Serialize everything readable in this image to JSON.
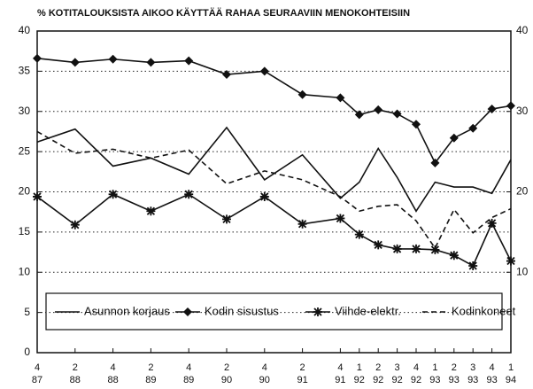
{
  "chart_data": {
    "type": "line",
    "title": "% KOTITALOUKSISTA AIKOO KÄYTTÄÄ RAHAA SEURAAVIIN MENOKOHTEISIIN",
    "categories": [
      "4\n87",
      "2\n88",
      "4\n88",
      "2\n89",
      "4\n89",
      "2\n90",
      "4\n90",
      "2\n91",
      "4\n91",
      "1\n92",
      "2\n92",
      "3\n92",
      "4\n92",
      "1\n93",
      "2\n93",
      "3\n93",
      "4\n93",
      "1\n94"
    ],
    "series": [
      {
        "name": "Asunnon korjaus",
        "color": "#111111",
        "marker": "none",
        "dash": false,
        "values": [
          26.2,
          27.8,
          23.2,
          24.2,
          22.2,
          28,
          21.5,
          24.6,
          19.2,
          21.2,
          25.4,
          21.8,
          17.6,
          21.2,
          20.6,
          20.6,
          19.8,
          24
        ]
      },
      {
        "name": "Kodin sisustus",
        "color": "#111111",
        "marker": "diamond",
        "dash": false,
        "values": [
          36.6,
          36.1,
          36.5,
          36.1,
          36.3,
          34.6,
          35,
          32.1,
          31.7,
          29.6,
          30.2,
          29.7,
          28.4,
          23.6,
          26.7,
          27.9,
          30.3,
          30.7
        ]
      },
      {
        "name": "Viihde-elektr.",
        "color": "#111111",
        "marker": "star",
        "dash": false,
        "values": [
          19.4,
          15.9,
          19.7,
          17.6,
          19.7,
          16.6,
          19.4,
          16,
          16.7,
          14.7,
          13.4,
          12.9,
          12.9,
          12.8,
          12.1,
          10.8,
          16.1,
          11.4
        ]
      },
      {
        "name": "Kodinkoneet",
        "color": "#111111",
        "marker": "none",
        "dash": true,
        "values": [
          27.5,
          24.8,
          25.3,
          24.2,
          25.2,
          21,
          22.6,
          21.5,
          19.4,
          17.6,
          18.2,
          18.4,
          16.4,
          13,
          17.8,
          14.9,
          16.8,
          17.9
        ]
      }
    ],
    "ylim": [
      0,
      40
    ],
    "yticks": [
      0,
      5,
      10,
      15,
      20,
      25,
      30,
      35,
      40
    ],
    "y2lim": [
      0,
      40
    ],
    "y2ticks": [
      10,
      20,
      30,
      40
    ],
    "grid": true
  }
}
